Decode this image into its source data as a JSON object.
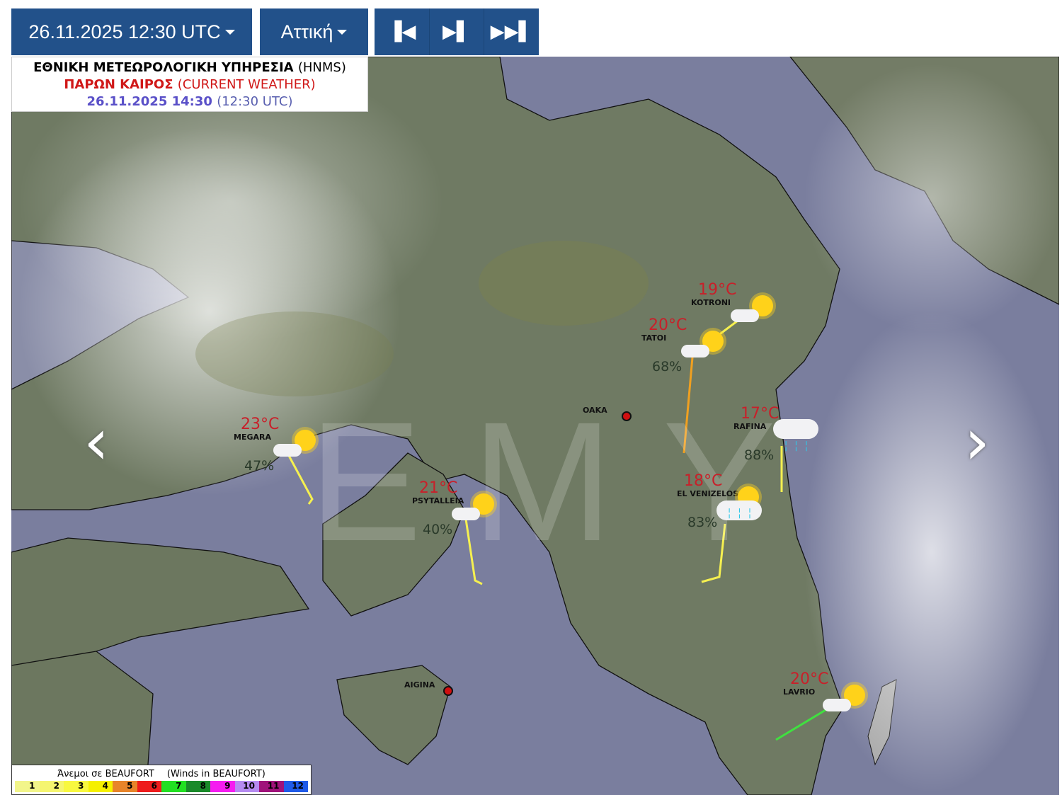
{
  "toolbar": {
    "datetime": "26.11.2025 12:30 UTC",
    "region": "Αττική",
    "nav": {
      "first": "⏮",
      "next": "⏭",
      "last": "⏭⏭"
    }
  },
  "header": {
    "agency_gr": "ΕΘΝΙΚΗ ΜΕΤΕΩΡΟΛΟΓΙΚΗ ΥΠΗΡΕΣΙΑ",
    "agency_en": "(HNMS)",
    "title_gr": "ΠΑΡΩΝ ΚΑΙΡΟΣ",
    "title_en": "(CURRENT WEATHER)",
    "local_time": "26.11.2025 14:30",
    "utc_time": "(12:30 UTC)"
  },
  "watermark": "EMY",
  "stations": [
    {
      "name": "MEGARA",
      "temp": "23°C",
      "humidity": "47%",
      "icon": "sun-cloud"
    },
    {
      "name": "PSYTALLEIA",
      "temp": "21°C",
      "humidity": "40%",
      "icon": "sun-cloud"
    },
    {
      "name": "TATOI",
      "temp": "20°C",
      "humidity": "68%",
      "icon": "sun-cloud"
    },
    {
      "name": "KOTRONI",
      "temp": "19°C",
      "humidity": "",
      "icon": "sun-cloud"
    },
    {
      "name": "RAFINA",
      "temp": "17°C",
      "humidity": "88%",
      "icon": "cloud-rain"
    },
    {
      "name": "EL VENIZELOS",
      "temp": "18°C",
      "humidity": "83%",
      "icon": "sun-cloud-rain"
    },
    {
      "name": "LAVRIO",
      "temp": "20°C",
      "humidity": "",
      "icon": "sun-cloud"
    },
    {
      "name": "OAKA",
      "temp": "",
      "humidity": "",
      "icon": "dot"
    },
    {
      "name": "AIGINA",
      "temp": "",
      "humidity": "",
      "icon": "dot"
    }
  ],
  "legend": {
    "title_gr": "Άνεμοι σε BEAUFORT",
    "title_en": "(Winds in BEAUFORT)",
    "scale": [
      {
        "label": "1",
        "color": "#f2f58a"
      },
      {
        "label": "2",
        "color": "#f5f570"
      },
      {
        "label": "3",
        "color": "#f8f840"
      },
      {
        "label": "4",
        "color": "#f5f000"
      },
      {
        "label": "5",
        "color": "#e8842a"
      },
      {
        "label": "6",
        "color": "#ee1c1c"
      },
      {
        "label": "7",
        "color": "#22e022"
      },
      {
        "label": "8",
        "color": "#1a8a2a"
      },
      {
        "label": "9",
        "color": "#f51cf0"
      },
      {
        "label": "10",
        "color": "#b58af0"
      },
      {
        "label": "11",
        "color": "#a0127a"
      },
      {
        "label": "12",
        "color": "#1f5ae8"
      }
    ]
  },
  "colors": {
    "button": "#22518a",
    "temp": "#c8202a",
    "land": "#6f7a63",
    "sea": "#787c9c"
  }
}
